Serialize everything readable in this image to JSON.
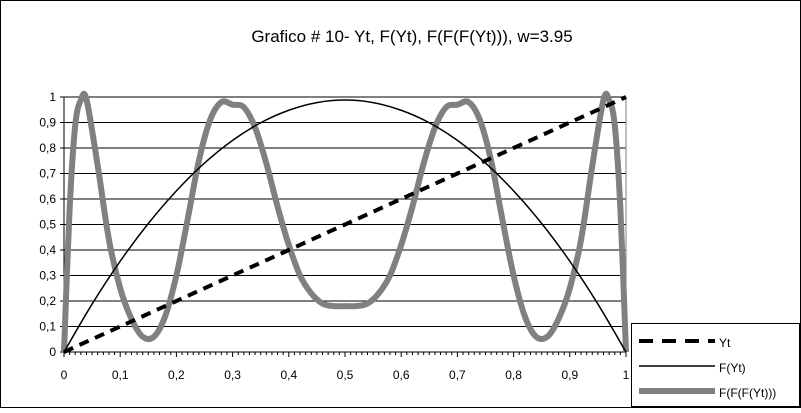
{
  "chart_data": {
    "type": "line",
    "title": "Grafico # 10- Yt, F(Yt), F(F(F(Yt))), w=3.95",
    "xlabel": "",
    "ylabel": "",
    "xlim": [
      0,
      1
    ],
    "ylim": [
      0,
      1
    ],
    "w": 3.95,
    "x_ticks": [
      "0",
      "0,1",
      "0,2",
      "0,3",
      "0,4",
      "0,5",
      "0,6",
      "0,7",
      "0,8",
      "0,9",
      "1"
    ],
    "y_ticks": [
      "0",
      "0,1",
      "0,2",
      "0,3",
      "0,4",
      "0,5",
      "0,6",
      "0,7",
      "0,8",
      "0,9",
      "1"
    ],
    "grid": "horizontal",
    "legend_position": "bottom-right",
    "series": [
      {
        "name": "Yt",
        "style": "dashed",
        "color": "#000000",
        "x": [
          0,
          0.1,
          0.2,
          0.3,
          0.4,
          0.5,
          0.6,
          0.7,
          0.8,
          0.9,
          1
        ],
        "y": [
          0,
          0.1,
          0.2,
          0.3,
          0.4,
          0.5,
          0.6,
          0.7,
          0.8,
          0.9,
          1
        ]
      },
      {
        "name": "F(Yt)",
        "style": "solid-thin",
        "color": "#000000",
        "x": [
          0,
          0.05,
          0.1,
          0.15,
          0.2,
          0.25,
          0.3,
          0.35,
          0.4,
          0.45,
          0.5,
          0.55,
          0.6,
          0.65,
          0.7,
          0.75,
          0.8,
          0.85,
          0.9,
          0.95,
          1
        ],
        "y": [
          0,
          0.188,
          0.356,
          0.504,
          0.632,
          0.741,
          0.83,
          0.899,
          0.948,
          0.978,
          0.988,
          0.978,
          0.948,
          0.899,
          0.83,
          0.741,
          0.632,
          0.504,
          0.356,
          0.188,
          0
        ]
      },
      {
        "name": "F(F(F(Yt)))",
        "style": "solid-thick",
        "color": "#808080",
        "x": [
          0,
          0.01,
          0.02,
          0.03,
          0.04,
          0.06,
          0.08,
          0.1,
          0.12,
          0.14,
          0.16,
          0.18,
          0.2,
          0.22,
          0.24,
          0.26,
          0.28,
          0.3,
          0.32,
          0.34,
          0.36,
          0.38,
          0.4,
          0.42,
          0.44,
          0.46,
          0.48,
          0.5,
          0.52,
          0.54,
          0.56,
          0.58,
          0.6,
          0.62,
          0.64,
          0.66,
          0.68,
          0.7,
          0.72,
          0.74,
          0.76,
          0.78,
          0.8,
          0.82,
          0.84,
          0.86,
          0.88,
          0.9,
          0.92,
          0.94,
          0.96,
          0.97,
          0.98,
          0.99,
          1
        ],
        "y": [
          0,
          0.561,
          0.889,
          0.988,
          0.99,
          0.73,
          0.44,
          0.25,
          0.13,
          0.06,
          0.06,
          0.14,
          0.3,
          0.52,
          0.75,
          0.91,
          0.98,
          0.97,
          0.96,
          0.88,
          0.74,
          0.57,
          0.42,
          0.3,
          0.23,
          0.19,
          0.18,
          0.18,
          0.18,
          0.19,
          0.23,
          0.3,
          0.42,
          0.57,
          0.74,
          0.88,
          0.96,
          0.97,
          0.98,
          0.91,
          0.75,
          0.52,
          0.3,
          0.14,
          0.06,
          0.06,
          0.13,
          0.25,
          0.44,
          0.73,
          0.99,
          0.988,
          0.889,
          0.561,
          0
        ]
      }
    ]
  }
}
